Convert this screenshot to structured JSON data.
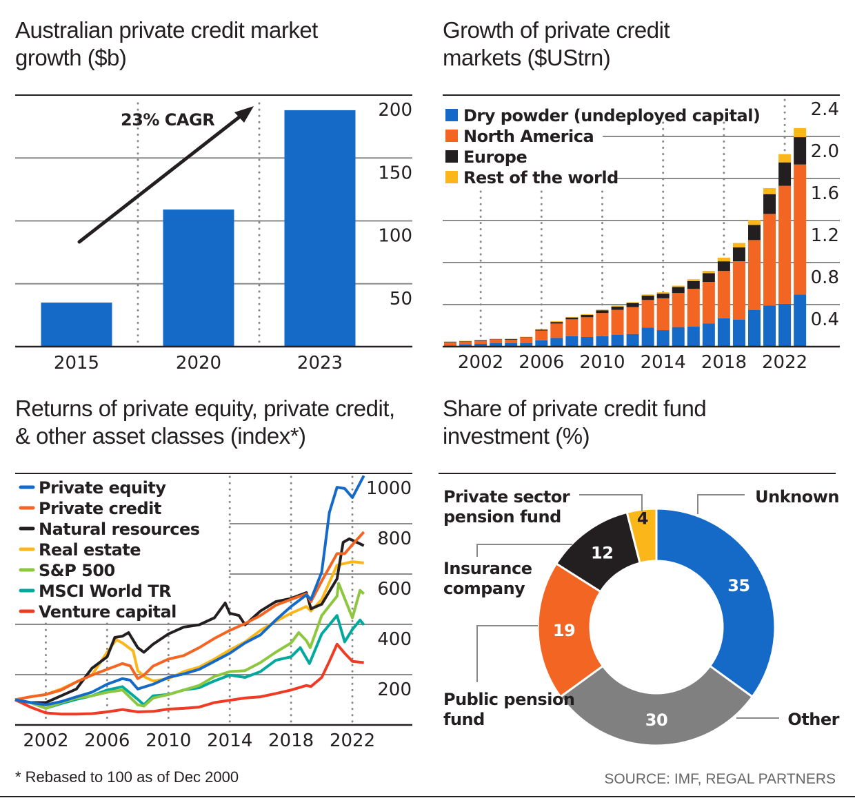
{
  "colors": {
    "blue": "#1569c7",
    "orange": "#f26522",
    "black": "#231f20",
    "yellow": "#fbb619",
    "green": "#8dc63f",
    "teal": "#00a99d",
    "red": "#ef3b24",
    "gray": "#808080"
  },
  "footnote": "* Rebased to 100 as of Dec 2000",
  "source": "SOURCE: IMF, REGAL PARTNERS",
  "chart_data": [
    {
      "type": "bar",
      "title": "Australian private credit market growth ($b)",
      "categories": [
        "2015",
        "2020",
        "2023"
      ],
      "values": [
        35,
        109,
        188
      ],
      "ylim": [
        0,
        200
      ],
      "yticks": [
        "50",
        "100",
        "150",
        "200"
      ],
      "grid": true,
      "annotation": "23% CAGR",
      "color": "#1569c7"
    },
    {
      "type": "bar",
      "stacked": true,
      "title": "Growth of private credit markets ($UStrn)",
      "x": [
        2000,
        2001,
        2002,
        2003,
        2004,
        2005,
        2006,
        2007,
        2008,
        2009,
        2010,
        2011,
        2012,
        2013,
        2014,
        2015,
        2016,
        2017,
        2018,
        2019,
        2020,
        2021,
        2022,
        2023
      ],
      "xticks": [
        "2002",
        "2006",
        "2010",
        "2014",
        "2018",
        "2022"
      ],
      "yticks": [
        "0.4",
        "0.8",
        "1.2",
        "1.6",
        "2.0",
        "2.4"
      ],
      "ylim": [
        0,
        2.4
      ],
      "legend": "top-left",
      "series": [
        {
          "name": "Dry powder (undeployed capital)",
          "color": "#1569c7",
          "values": [
            0.01,
            0.02,
            0.026,
            0.033,
            0.033,
            0.035,
            0.06,
            0.083,
            0.1,
            0.092,
            0.1,
            0.114,
            0.12,
            0.18,
            0.157,
            0.186,
            0.19,
            0.22,
            0.27,
            0.258,
            0.35,
            0.39,
            0.407,
            0.496
          ]
        },
        {
          "name": "North America",
          "color": "#f26522",
          "values": [
            0.03,
            0.025,
            0.029,
            0.037,
            0.033,
            0.052,
            0.093,
            0.137,
            0.16,
            0.188,
            0.22,
            0.236,
            0.256,
            0.264,
            0.303,
            0.324,
            0.36,
            0.396,
            0.45,
            0.555,
            0.664,
            0.873,
            1.123,
            1.237
          ]
        },
        {
          "name": "Europe",
          "color": "#231f20",
          "values": [
            0.005,
            0.005,
            0.006,
            0.003,
            0.006,
            0.004,
            0.009,
            0.015,
            0.017,
            0.022,
            0.026,
            0.031,
            0.039,
            0.041,
            0.044,
            0.057,
            0.074,
            0.083,
            0.092,
            0.131,
            0.144,
            0.188,
            0.223,
            0.26
          ]
        },
        {
          "name": "Rest of the world",
          "color": "#fbb619",
          "values": [
            0.005,
            0.005,
            0.004,
            0.002,
            0.004,
            0.003,
            0.004,
            0.007,
            0.006,
            0.007,
            0.007,
            0.009,
            0.009,
            0.011,
            0.013,
            0.013,
            0.017,
            0.022,
            0.035,
            0.042,
            0.048,
            0.057,
            0.079,
            0.087
          ]
        }
      ]
    },
    {
      "type": "line",
      "title": "Returns of private equity, private credit, & other asset classes (index*)",
      "xticks": [
        "2002",
        "2006",
        "2010",
        "2014",
        "2018",
        "2022"
      ],
      "yticks": [
        "200",
        "400",
        "600",
        "800",
        "1000"
      ],
      "xlim": [
        2000,
        2023
      ],
      "ylim": [
        0,
        1000
      ],
      "legend": "top-left",
      "series": [
        {
          "name": "Private equity",
          "color": "#1569c7",
          "points": [
            [
              2000,
              100
            ],
            [
              2001,
              89
            ],
            [
              2002,
              80
            ],
            [
              2003,
              93
            ],
            [
              2004,
              112
            ],
            [
              2005,
              130
            ],
            [
              2006,
              162
            ],
            [
              2007,
              184
            ],
            [
              2007.5,
              178
            ],
            [
              2008,
              143
            ],
            [
              2009,
              162
            ],
            [
              2010,
              189
            ],
            [
              2011,
              203
            ],
            [
              2012,
              221
            ],
            [
              2013,
              253
            ],
            [
              2014,
              285
            ],
            [
              2015,
              326
            ],
            [
              2016,
              358
            ],
            [
              2017,
              417
            ],
            [
              2018,
              471
            ],
            [
              2019,
              517
            ],
            [
              2019.3,
              499
            ],
            [
              2020,
              608
            ],
            [
              2020.5,
              845
            ],
            [
              2021,
              945
            ],
            [
              2021.5,
              940
            ],
            [
              2022,
              904
            ],
            [
              2022.75,
              991
            ]
          ]
        },
        {
          "name": "Private credit",
          "color": "#f26522",
          "points": [
            [
              2000,
              100
            ],
            [
              2001,
              112
            ],
            [
              2002,
              121
            ],
            [
              2003,
              139
            ],
            [
              2004,
              171
            ],
            [
              2005,
              198
            ],
            [
              2006,
              221
            ],
            [
              2007,
              244
            ],
            [
              2007.5,
              235
            ],
            [
              2008,
              184
            ],
            [
              2008.4,
              198
            ],
            [
              2009,
              234
            ],
            [
              2010,
              262
            ],
            [
              2011,
              276
            ],
            [
              2012,
              307
            ],
            [
              2013,
              344
            ],
            [
              2014,
              376
            ],
            [
              2015,
              403
            ],
            [
              2016,
              435
            ],
            [
              2017,
              476
            ],
            [
              2018,
              499
            ],
            [
              2019,
              521
            ],
            [
              2019.3,
              490
            ],
            [
              2020,
              572
            ],
            [
              2021,
              681
            ],
            [
              2021.5,
              681
            ],
            [
              2022,
              717
            ],
            [
              2022.75,
              767
            ]
          ]
        },
        {
          "name": "Natural resources",
          "color": "#231f20",
          "points": [
            [
              2000,
              100
            ],
            [
              2001,
              89
            ],
            [
              2002,
              89
            ],
            [
              2003,
              116
            ],
            [
              2004,
              143
            ],
            [
              2005,
              225
            ],
            [
              2006,
              271
            ],
            [
              2006.5,
              348
            ],
            [
              2007,
              353
            ],
            [
              2007.4,
              367
            ],
            [
              2008,
              307
            ],
            [
              2008.4,
              289
            ],
            [
              2009,
              321
            ],
            [
              2010,
              362
            ],
            [
              2011,
              389
            ],
            [
              2012,
              398
            ],
            [
              2013,
              426
            ],
            [
              2013.7,
              485
            ],
            [
              2014,
              444
            ],
            [
              2014.6,
              435
            ],
            [
              2015,
              398
            ],
            [
              2016,
              453
            ],
            [
              2017,
              490
            ],
            [
              2018,
              503
            ],
            [
              2019,
              526
            ],
            [
              2019.3,
              462
            ],
            [
              2020,
              480
            ],
            [
              2021,
              581
            ],
            [
              2021.4,
              726
            ],
            [
              2021.8,
              740
            ],
            [
              2022.3,
              726
            ],
            [
              2022.75,
              713
            ]
          ]
        },
        {
          "name": "Real estate",
          "color": "#fbb619",
          "points": [
            [
              2000,
              100
            ],
            [
              2001,
              112
            ],
            [
              2002,
              121
            ],
            [
              2003,
              143
            ],
            [
              2004,
              171
            ],
            [
              2005,
              198
            ],
            [
              2006,
              289
            ],
            [
              2006.6,
              339
            ],
            [
              2007,
              326
            ],
            [
              2007.7,
              294
            ],
            [
              2008,
              216
            ],
            [
              2008.5,
              189
            ],
            [
              2009,
              175
            ],
            [
              2010,
              184
            ],
            [
              2011,
              212
            ],
            [
              2012,
              230
            ],
            [
              2013,
              262
            ],
            [
              2014,
              298
            ],
            [
              2015,
              330
            ],
            [
              2016,
              376
            ],
            [
              2017,
              412
            ],
            [
              2018,
              444
            ],
            [
              2019,
              471
            ],
            [
              2019.3,
              453
            ],
            [
              2020,
              499
            ],
            [
              2021,
              635
            ],
            [
              2022,
              649
            ],
            [
              2022.75,
              644
            ]
          ]
        },
        {
          "name": "S&P 500",
          "color": "#8dc63f",
          "points": [
            [
              2000,
              100
            ],
            [
              2001,
              89
            ],
            [
              2002,
              66
            ],
            [
              2003,
              89
            ],
            [
              2004,
              107
            ],
            [
              2005,
              116
            ],
            [
              2006,
              130
            ],
            [
              2007,
              139
            ],
            [
              2008,
              80
            ],
            [
              2008.4,
              75
            ],
            [
              2009,
              107
            ],
            [
              2010,
              121
            ],
            [
              2011,
              139
            ],
            [
              2012,
              157
            ],
            [
              2013,
              193
            ],
            [
              2014,
              212
            ],
            [
              2015,
              216
            ],
            [
              2016,
              248
            ],
            [
              2017,
              289
            ],
            [
              2018,
              326
            ],
            [
              2018.5,
              367
            ],
            [
              2019,
              335
            ],
            [
              2019.25,
              307
            ],
            [
              2020,
              435
            ],
            [
              2021,
              512
            ],
            [
              2021.1,
              563
            ],
            [
              2022,
              426
            ],
            [
              2022.5,
              535
            ],
            [
              2022.75,
              521
            ]
          ]
        },
        {
          "name": "MSCI World TR",
          "color": "#00a99d",
          "points": [
            [
              2000,
              100
            ],
            [
              2001,
              89
            ],
            [
              2002,
              66
            ],
            [
              2003,
              85
            ],
            [
              2004,
              102
            ],
            [
              2005,
              116
            ],
            [
              2006,
              139
            ],
            [
              2007,
              152
            ],
            [
              2008,
              102
            ],
            [
              2008.4,
              80
            ],
            [
              2009,
              116
            ],
            [
              2010,
              121
            ],
            [
              2011,
              139
            ],
            [
              2012,
              148
            ],
            [
              2013,
              175
            ],
            [
              2014,
              198
            ],
            [
              2015,
              189
            ],
            [
              2016,
              212
            ],
            [
              2017,
              257
            ],
            [
              2018,
              271
            ],
            [
              2018.6,
              307
            ],
            [
              2019.2,
              244
            ],
            [
              2020,
              362
            ],
            [
              2021,
              435
            ],
            [
              2021.5,
              330
            ],
            [
              2022,
              380
            ],
            [
              2022.5,
              417
            ],
            [
              2022.75,
              398
            ]
          ]
        },
        {
          "name": "Venture capital",
          "color": "#ef3b24",
          "points": [
            [
              2000,
              100
            ],
            [
              2001,
              71
            ],
            [
              2002,
              48
            ],
            [
              2003,
              43
            ],
            [
              2004,
              43
            ],
            [
              2005,
              45
            ],
            [
              2006,
              52
            ],
            [
              2007,
              61
            ],
            [
              2008,
              52
            ],
            [
              2009,
              54
            ],
            [
              2010,
              63
            ],
            [
              2011,
              66
            ],
            [
              2012,
              71
            ],
            [
              2013,
              89
            ],
            [
              2014,
              98
            ],
            [
              2015,
              107
            ],
            [
              2016,
              112
            ],
            [
              2017,
              125
            ],
            [
              2018,
              139
            ],
            [
              2019,
              157
            ],
            [
              2019.3,
              153
            ],
            [
              2020,
              189
            ],
            [
              2020.5,
              253
            ],
            [
              2021,
              321
            ],
            [
              2021.5,
              285
            ],
            [
              2022,
              253
            ],
            [
              2022.75,
              248
            ]
          ]
        }
      ]
    },
    {
      "type": "pie",
      "donut": true,
      "title": "Share of private credit fund investment (%)",
      "slices": [
        {
          "label": "Unknown",
          "value": 35,
          "color": "#1569c7"
        },
        {
          "label": "Other",
          "value": 30,
          "color": "#808080"
        },
        {
          "label": "Public pension fund",
          "value": 19,
          "color": "#f26522"
        },
        {
          "label": "Insurance company",
          "value": 12,
          "color": "#231f20"
        },
        {
          "label": "Private sector pension fund",
          "value": 4,
          "color": "#fbb619"
        }
      ]
    }
  ]
}
